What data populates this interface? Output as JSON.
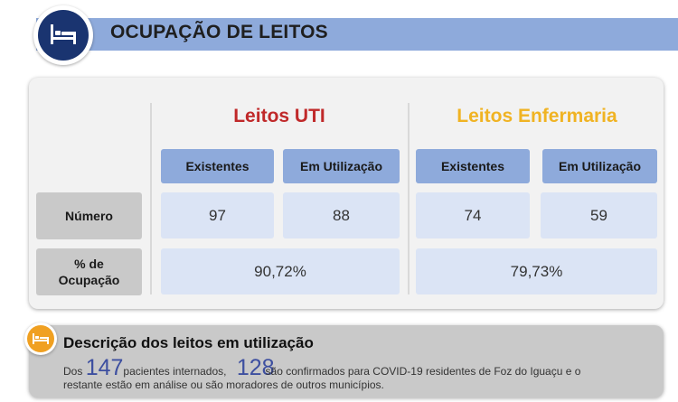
{
  "header": {
    "title": "OCUPAÇÃO DE LEITOS",
    "icon": "bed-icon",
    "band_color": "#8eaadb",
    "icon_bg": "#1a3470"
  },
  "uti": {
    "title": "Leitos UTI",
    "color": "#c0292a",
    "col_existentes": "Existentes",
    "col_em_utilizacao": "Em Utilização",
    "numero_existentes": "97",
    "numero_em_utilizacao": "88",
    "ocupacao": "90,72%"
  },
  "enfermaria": {
    "title": "Leitos Enfermaria",
    "color": "#f0b323",
    "col_existentes": "Existentes",
    "col_em_utilizacao": "Em Utilização",
    "numero_existentes": "74",
    "numero_em_utilizacao": "59",
    "ocupacao": "79,73%"
  },
  "rows": {
    "numero": "Número",
    "ocupacao_line1": "% de",
    "ocupacao_line2": "Ocupação"
  },
  "descricao": {
    "icon": "bed-icon",
    "title": "Descrição dos leitos em utilização",
    "prefix": "Dos ",
    "internados": "147",
    "text_internados": "pacientes internados, ",
    "confirmados": "128",
    "text_confirmados": "são confirmados para COVID-19 residentes de Foz do Iguaçu e o",
    "line2": "restante estão em análise ou são moradores de outros municípios."
  }
}
